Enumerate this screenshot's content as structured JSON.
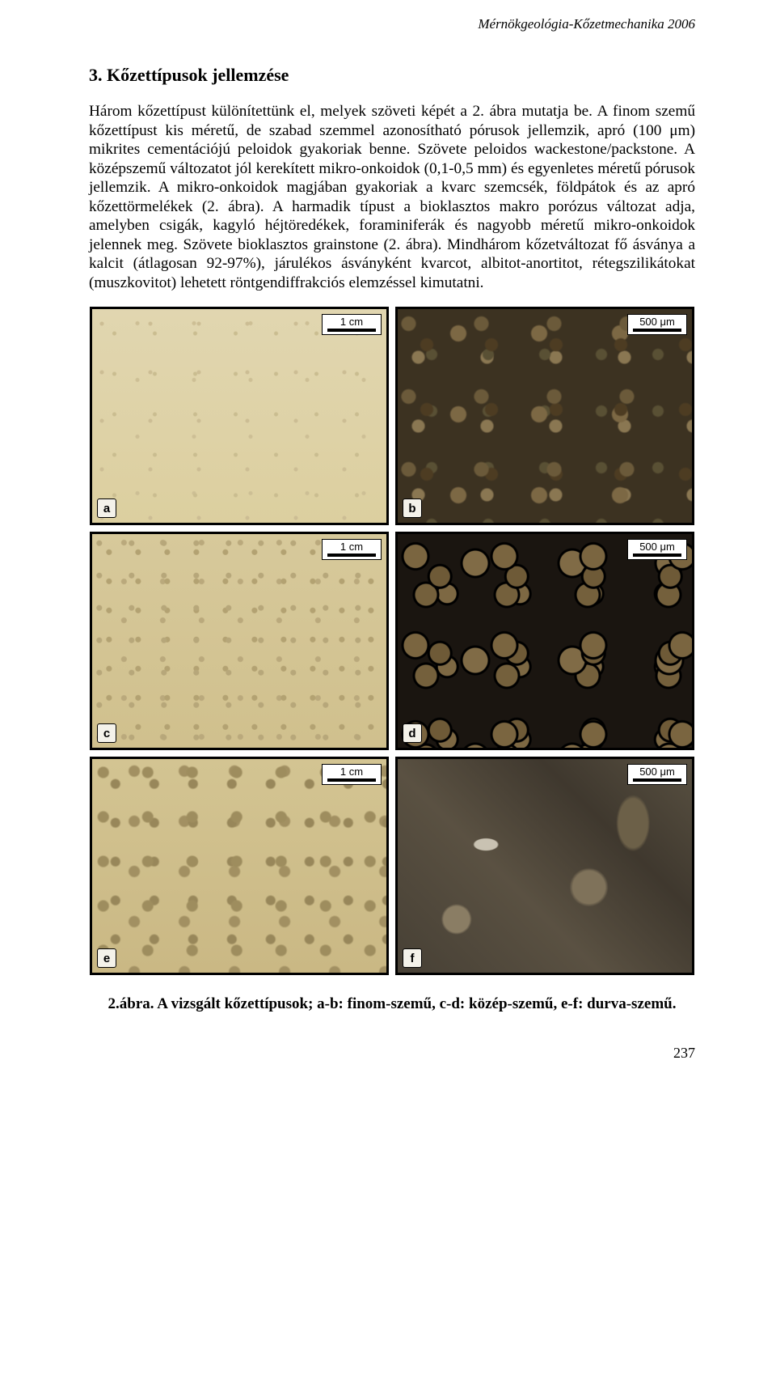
{
  "header": {
    "running": "Mérnökgeológia-Kőzetmechanika 2006"
  },
  "section": {
    "title": "3. Kőzettípusok jellemzése"
  },
  "body": {
    "paragraph": "Három kőzettípust különítettünk el, melyek szöveti képét a 2. ábra mutatja be. A finom szemű kőzettípust kis méretű, de szabad szemmel azonosítható pórusok jellemzik, apró (100 μm) mikrites cementációjú peloidok gyakoriak benne. Szövete peloidos wackestone/packstone. A középszemű változatot jól kerekített mikro-onkoidok (0,1-0,5 mm) és egyenletes méretű pórusok jellemzik. A mikro-onkoidok magjában gyakoriak a kvarc szemcsék, földpátok és az apró kőzettörmelékek (2. ábra). A harmadik típust a bioklasztos makro porózus változat adja, amelyben csigák, kagyló héjtöredékek, foraminiferák és nagyobb méretű mikro-onkoidok jelennek meg. Szövete bioklasztos grainstone (2. ábra). Mindhárom kőzetváltozat fő ásványa a kalcit (átlagosan 92-97%), járulékos ásványként kvarcot, albitot-anortitot, rétegszilikátokat (muszkovitot) lehetett röntgendiffrakciós elemzéssel kimutatni."
  },
  "figure": {
    "panels": [
      {
        "letter": "a",
        "scale": "1 cm",
        "bg_class": "bg-a"
      },
      {
        "letter": "b",
        "scale": "500 μm",
        "bg_class": "bg-b"
      },
      {
        "letter": "c",
        "scale": "1 cm",
        "bg_class": "bg-c"
      },
      {
        "letter": "d",
        "scale": "500 μm",
        "bg_class": "bg-d"
      },
      {
        "letter": "e",
        "scale": "1 cm",
        "bg_class": "bg-e"
      },
      {
        "letter": "f",
        "scale": "500 μm",
        "bg_class": "bg-f"
      }
    ],
    "caption": "2.ábra. A vizsgált kőzettípusok; a-b: finom-szemű, c-d: közép-szemű, e-f: durva-szemű."
  },
  "page": {
    "number": "237"
  }
}
